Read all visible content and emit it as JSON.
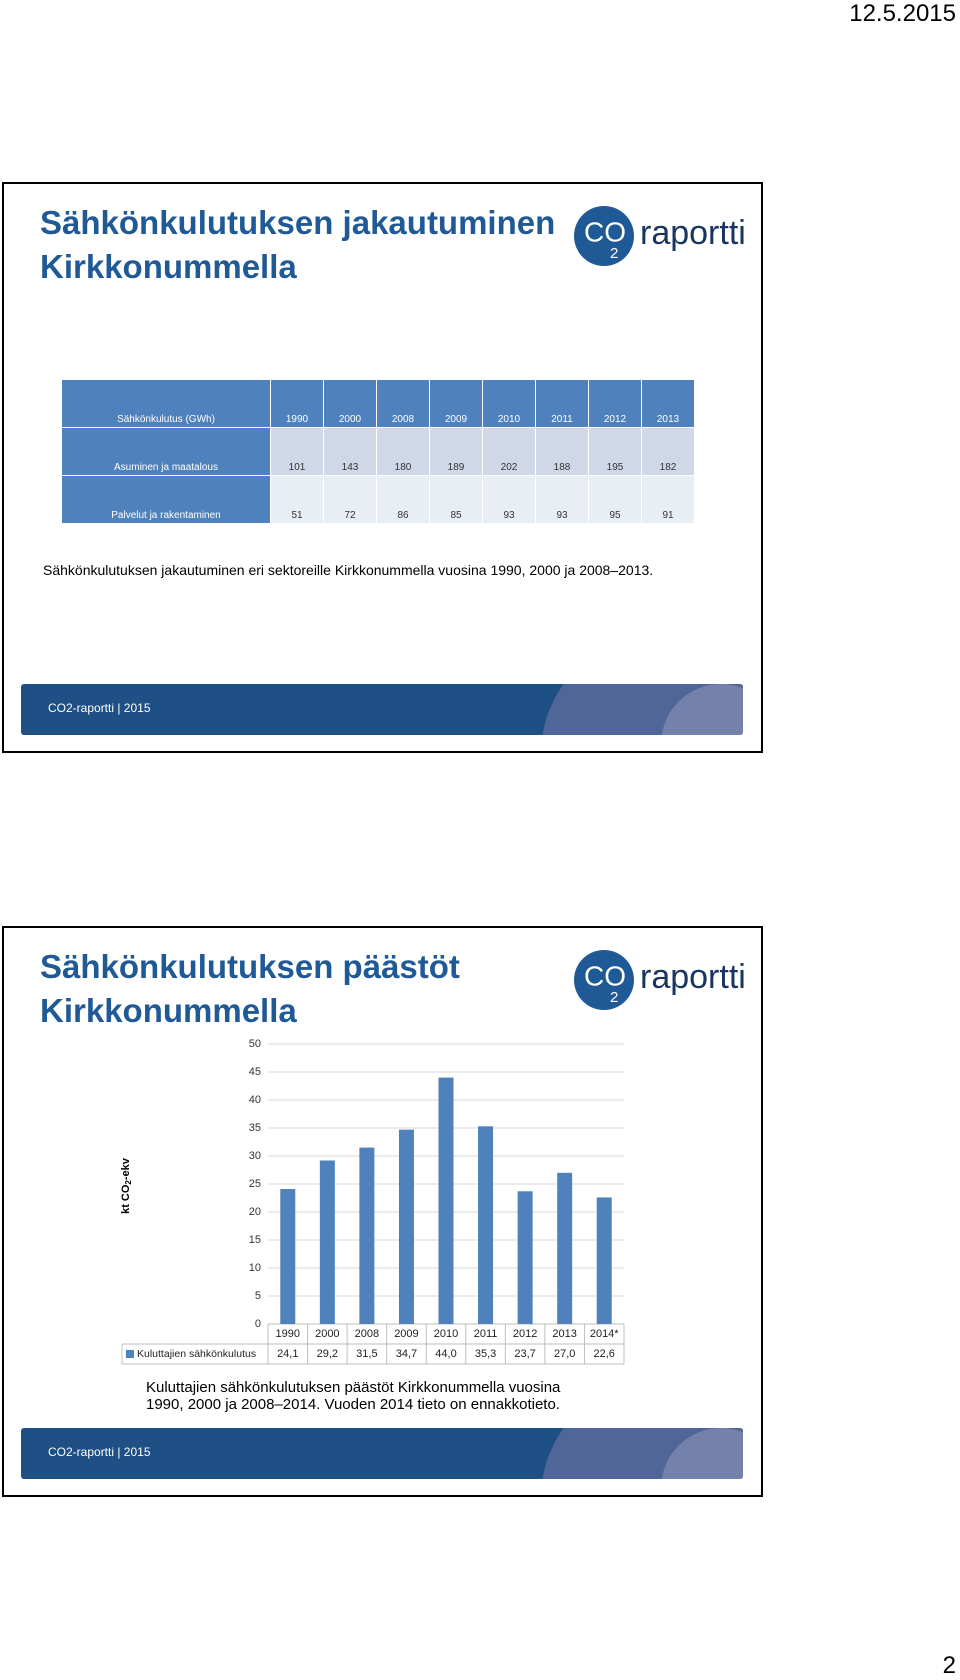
{
  "header": {
    "date": "12.5.2015"
  },
  "logo": {
    "co": "CO",
    "sub": "2",
    "word": "raportti"
  },
  "footer": "CO2-raportti | 2015",
  "slide1": {
    "title": [
      "Sähkönkulutuksen jakautuminen",
      "Kirkkonummella"
    ],
    "table": {
      "header": [
        "Sähkönkulutus (GWh)",
        "1990",
        "2000",
        "2008",
        "2009",
        "2010",
        "2011",
        "2012",
        "2013"
      ],
      "rows": [
        [
          "Asuminen ja maatalous",
          101,
          143,
          180,
          189,
          202,
          188,
          195,
          182
        ],
        [
          "Palvelut ja rakentaminen",
          51,
          72,
          86,
          85,
          93,
          93,
          95,
          91
        ]
      ]
    },
    "caption": "Sähkönkulutuksen jakautuminen eri sektoreille Kirkkonummella  vuosina 1990, 2000 ja 2008–2013."
  },
  "slide2": {
    "title": [
      "Sähkönkulutuksen päästöt",
      "Kirkkonummella"
    ],
    "caption": [
      "Kuluttajien sähkönkulutuksen päästöt Kirkkonummella  vuosina",
      "1990, 2000 ja 2008–2014. Vuoden 2014 tieto on ennakkotieto."
    ]
  },
  "chart_data": {
    "type": "bar",
    "ylabel": {
      "pre": "kt CO",
      "sub": "2",
      "post": "-ekv"
    },
    "categories": [
      "1990",
      "2000",
      "2008",
      "2009",
      "2010",
      "2011",
      "2012",
      "2013",
      "2014*"
    ],
    "series": [
      {
        "name": "Kuluttajien sähkönkulutus",
        "color": "#4f81bd",
        "values": [
          24.1,
          29.2,
          31.5,
          34.7,
          44.0,
          35.3,
          23.7,
          27.0,
          22.6
        ],
        "value_labels": [
          "24,1",
          "29,2",
          "31,5",
          "34,7",
          "44,0",
          "35,3",
          "23,7",
          "27,0",
          "22,6"
        ]
      }
    ],
    "ylim": [
      0,
      50
    ],
    "yticks": [
      0,
      5,
      10,
      15,
      20,
      25,
      30,
      35,
      40,
      45,
      50
    ],
    "grid": true
  },
  "page_number": "2"
}
